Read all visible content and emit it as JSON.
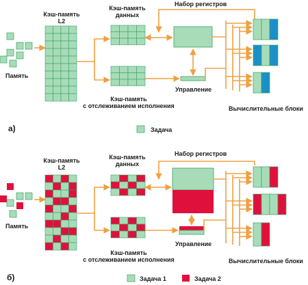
{
  "colors": {
    "task_green": "#a8dcb8",
    "task_red": "#e0103c",
    "grid_border": "#3aa064",
    "arrow": "#f0a040",
    "exec_blue": "#1b90c8"
  },
  "panel_a": {
    "letter": "а)",
    "memory": "Память",
    "l2_line1": "Кэш-память",
    "l2_line2": "L2",
    "data_cache_line1": "Кэш-память",
    "data_cache_line2": "данных",
    "registers": "Набор регистров",
    "control": "Управление",
    "trace_line1": "Кэш-память",
    "trace_line2": "с отслеживанием исполнения",
    "exec_units": "Вычислительные блоки",
    "legend_task": "Задача"
  },
  "panel_b": {
    "letter": "б)",
    "memory": "Память",
    "l2_line1": "Кэш-память",
    "l2_line2": "L2",
    "data_cache_line1": "Кэш-память",
    "data_cache_line2": "данных",
    "registers": "Набор регистров",
    "control": "Управление",
    "trace_line1": "Кэш-память",
    "trace_line2": "с отслеживанием исполнения",
    "exec_units": "Вычислительные блоки",
    "legend_task1": "Задача 1",
    "legend_task2": "Задача 2"
  }
}
